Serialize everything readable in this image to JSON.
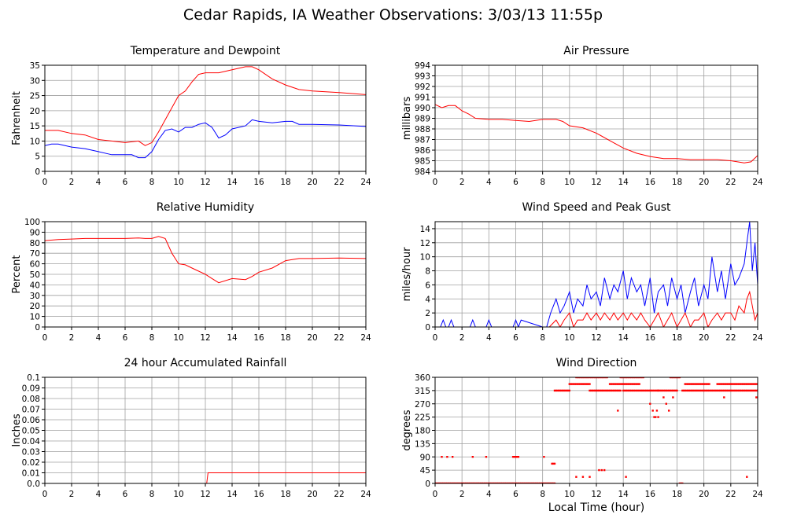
{
  "page": {
    "title": "Cedar Rapids, IA Weather Observations: 3/03/13 11:55p",
    "x_axis_label": "Local Time (hour)",
    "x_ticks": [
      "0",
      "2",
      "4",
      "6",
      "8",
      "10",
      "12",
      "14",
      "16",
      "18",
      "20",
      "22",
      "24"
    ]
  },
  "colors": {
    "red": "#ff0000",
    "blue": "#0000ff",
    "grid": "#a0a0a0",
    "frame": "#000000"
  },
  "chart_data": [
    {
      "id": "temp",
      "type": "line",
      "title": "Temperature and Dewpoint",
      "ylabel": "Fahrenheit",
      "xlim": [
        0,
        24
      ],
      "ylim": [
        0,
        35
      ],
      "yticks": [
        0,
        5,
        10,
        15,
        20,
        25,
        30,
        35
      ],
      "ytick_labels": [
        "0",
        "5",
        "10",
        "15",
        "20",
        "25",
        "30",
        "35"
      ],
      "grid": true,
      "series": [
        {
          "color": "#ff0000",
          "x": [
            0,
            1,
            2,
            3,
            4,
            5,
            6,
            7,
            7.5,
            8,
            8.5,
            9,
            9.5,
            10,
            10.5,
            11,
            11.5,
            12,
            13,
            14,
            15,
            15.5,
            16,
            17,
            18,
            19,
            20,
            22,
            24
          ],
          "y": [
            13.5,
            13.5,
            12.5,
            12,
            10.5,
            10,
            9.5,
            10,
            8.5,
            9.5,
            13,
            17,
            21,
            25,
            26.5,
            29.5,
            32,
            32.5,
            32.5,
            33.5,
            34.5,
            34.5,
            33.5,
            30.5,
            28.5,
            27,
            26.5,
            26,
            25.3
          ]
        },
        {
          "color": "#0000ff",
          "x": [
            0,
            0.5,
            1,
            2,
            3,
            4,
            5,
            6,
            6.5,
            7,
            7.5,
            8,
            8.5,
            9,
            9.5,
            10,
            10.5,
            11,
            11.5,
            12,
            12.5,
            13,
            13.5,
            14,
            15,
            15.5,
            16,
            17,
            18,
            18.5,
            19,
            20,
            22,
            24
          ],
          "y": [
            8.5,
            9,
            9,
            8,
            7.5,
            6.5,
            5.5,
            5.5,
            5.5,
            4.5,
            4.5,
            6.5,
            10.5,
            13.5,
            14,
            13,
            14.5,
            14.5,
            15.5,
            16,
            14.5,
            11,
            12,
            14,
            15,
            17,
            16.5,
            16,
            16.5,
            16.5,
            15.5,
            15.5,
            15.3,
            14.8
          ]
        }
      ]
    },
    {
      "id": "pres",
      "type": "line",
      "title": "Air Pressure",
      "ylabel": "millibars",
      "xlim": [
        0,
        24
      ],
      "ylim": [
        984,
        994
      ],
      "yticks": [
        984,
        985,
        986,
        987,
        988,
        989,
        990,
        991,
        992,
        993,
        994
      ],
      "ytick_labels": [
        "984",
        "985",
        "986",
        "987",
        "988",
        "989",
        "990",
        "991",
        "992",
        "993",
        "994"
      ],
      "grid": true,
      "series": [
        {
          "color": "#ff0000",
          "x": [
            0,
            0.5,
            1,
            1.5,
            2,
            2.5,
            3,
            4,
            5,
            6,
            7,
            8,
            9,
            9.5,
            10,
            11,
            12,
            13,
            14,
            15,
            16,
            17,
            18,
            19,
            20,
            21,
            22,
            23,
            23.5,
            24
          ],
          "y": [
            990.3,
            990.0,
            990.2,
            990.2,
            989.7,
            989.4,
            989.0,
            988.9,
            988.9,
            988.8,
            988.7,
            988.9,
            988.9,
            988.7,
            988.3,
            988.1,
            987.6,
            986.9,
            986.2,
            985.7,
            985.4,
            985.2,
            985.2,
            985.1,
            985.1,
            985.1,
            985.0,
            984.8,
            984.9,
            985.5
          ]
        }
      ]
    },
    {
      "id": "rh",
      "type": "line",
      "title": "Relative Humidity",
      "ylabel": "Percent",
      "xlim": [
        0,
        24
      ],
      "ylim": [
        0,
        100
      ],
      "yticks": [
        0,
        10,
        20,
        30,
        40,
        50,
        60,
        70,
        80,
        90,
        100
      ],
      "ytick_labels": [
        "0",
        "10",
        "20",
        "30",
        "40",
        "50",
        "60",
        "70",
        "80",
        "90",
        "100"
      ],
      "grid": true,
      "series": [
        {
          "color": "#ff0000",
          "x": [
            0,
            1,
            2,
            3,
            4,
            5,
            6,
            7,
            7.5,
            8,
            8.5,
            9,
            9.5,
            10,
            10.5,
            11,
            11.5,
            12,
            12.5,
            13,
            14,
            15,
            15.5,
            16,
            17,
            18,
            19,
            20,
            22,
            24
          ],
          "y": [
            82,
            83,
            83.5,
            84,
            84,
            84,
            84,
            84.5,
            84,
            84,
            86,
            84,
            70,
            60,
            59,
            56,
            53,
            50,
            46,
            42,
            46,
            45,
            48,
            52,
            56,
            63,
            65,
            65,
            65.5,
            65
          ]
        }
      ]
    },
    {
      "id": "wind",
      "type": "line",
      "title": "Wind Speed and Peak Gust",
      "ylabel": "miles/hour",
      "xlim": [
        0,
        24
      ],
      "ylim": [
        0,
        15
      ],
      "yticks": [
        0,
        2,
        4,
        6,
        8,
        10,
        12,
        14
      ],
      "ytick_labels": [
        "0",
        "2",
        "4",
        "6",
        "8",
        "10",
        "12",
        "14"
      ],
      "grid": true,
      "series": [
        {
          "color": "#0000ff",
          "x": [
            0,
            0.4,
            0.6,
            0.8,
            1.0,
            1.2,
            1.4,
            2.6,
            2.8,
            3.0,
            3.8,
            4.0,
            4.2,
            5.8,
            6.0,
            6.2,
            6.4,
            8.0,
            8.3,
            8.6,
            9.0,
            9.3,
            9.6,
            10.0,
            10.3,
            10.6,
            11.0,
            11.3,
            11.6,
            12.0,
            12.3,
            12.6,
            13.0,
            13.3,
            13.6,
            14.0,
            14.3,
            14.6,
            15.0,
            15.3,
            15.6,
            16.0,
            16.3,
            16.6,
            17.0,
            17.3,
            17.6,
            18.0,
            18.3,
            18.6,
            19.0,
            19.3,
            19.6,
            20.0,
            20.3,
            20.6,
            21.0,
            21.3,
            21.6,
            22.0,
            22.3,
            22.6,
            23.0,
            23.2,
            23.4,
            23.6,
            23.8,
            24.0
          ],
          "y": [
            0,
            0,
            1,
            0,
            0,
            1,
            0,
            0,
            1,
            0,
            0,
            1,
            0,
            0,
            1,
            0,
            1,
            0,
            0,
            2,
            4,
            2,
            3,
            5,
            2,
            4,
            3,
            6,
            4,
            5,
            3,
            7,
            4,
            6,
            5,
            8,
            4,
            7,
            5,
            6,
            3,
            7,
            2,
            5,
            6,
            3,
            7,
            4,
            6,
            2,
            5,
            7,
            3,
            6,
            4,
            10,
            5,
            8,
            4,
            9,
            6,
            7,
            9,
            12,
            15,
            8,
            12,
            6
          ]
        },
        {
          "color": "#ff0000",
          "x": [
            0,
            8.5,
            9.0,
            9.3,
            9.6,
            10.0,
            10.3,
            10.6,
            11.0,
            11.3,
            11.6,
            12.0,
            12.3,
            12.6,
            13.0,
            13.3,
            13.6,
            14.0,
            14.3,
            14.6,
            15.0,
            15.3,
            15.6,
            16.0,
            16.3,
            16.6,
            17.0,
            17.3,
            17.6,
            18.0,
            18.3,
            18.6,
            19.0,
            19.3,
            19.6,
            20.0,
            20.3,
            20.6,
            21.0,
            21.3,
            21.6,
            22.0,
            22.3,
            22.6,
            23.0,
            23.2,
            23.4,
            23.6,
            23.8,
            24.0
          ],
          "y": [
            0,
            0,
            1,
            0,
            1,
            2,
            0,
            1,
            1,
            2,
            1,
            2,
            1,
            2,
            1,
            2,
            1,
            2,
            1,
            2,
            1,
            2,
            1,
            0,
            1,
            2,
            0,
            1,
            2,
            0,
            1,
            2,
            0,
            1,
            1,
            2,
            0,
            1,
            2,
            1,
            2,
            2,
            1,
            3,
            2,
            4,
            5,
            3,
            1,
            2
          ]
        }
      ]
    },
    {
      "id": "rain",
      "type": "line",
      "title": "24 hour Accumulated Rainfall",
      "ylabel": "Inches",
      "xlim": [
        0,
        24
      ],
      "ylim": [
        0,
        0.1
      ],
      "yticks": [
        0,
        0.01,
        0.02,
        0.03,
        0.04,
        0.05,
        0.06,
        0.07,
        0.08,
        0.09,
        0.1
      ],
      "ytick_labels": [
        "0.0",
        "0.01",
        "0.02",
        "0.03",
        "0.04",
        "0.05",
        "0.06",
        "0.07",
        "0.08",
        "0.09",
        "0.1"
      ],
      "grid": true,
      "series": [
        {
          "color": "#ff0000",
          "x": [
            0,
            12.1,
            12.2,
            24
          ],
          "y": [
            0,
            0,
            0.01,
            0.01
          ]
        }
      ]
    },
    {
      "id": "dir",
      "type": "scatter",
      "title": "Wind Direction",
      "ylabel": "degrees",
      "xlim": [
        0,
        24
      ],
      "ylim": [
        0,
        360
      ],
      "yticks": [
        0,
        45,
        90,
        135,
        180,
        225,
        270,
        315,
        360
      ],
      "ytick_labels": [
        "0",
        "45",
        "90",
        "135",
        "180",
        "225",
        "270",
        "315",
        "360"
      ],
      "grid": true,
      "series": [
        {
          "color": "#ff0000",
          "points": [
            {
              "x0": 0.0,
              "x1": 8.9,
              "step": 0.1,
              "y": 0
            },
            {
              "x0": 18.2,
              "x1": 18.4,
              "step": 0.1,
              "y": 0
            },
            {
              "x0": 8.9,
              "x1": 10.0,
              "step": 0.1,
              "y": 315
            },
            {
              "x0": 10.0,
              "x1": 11.5,
              "step": 0.1,
              "y": 337
            },
            {
              "x0": 10.5,
              "x1": 12.8,
              "step": 0.1,
              "y": 360
            },
            {
              "x0": 11.5,
              "x1": 13.8,
              "step": 0.1,
              "y": 315
            },
            {
              "x0": 13.0,
              "x1": 15.2,
              "step": 0.1,
              "y": 337
            },
            {
              "x0": 13.8,
              "x1": 15.5,
              "step": 0.1,
              "y": 360
            },
            {
              "x0": 14.0,
              "x1": 16.6,
              "step": 0.1,
              "y": 315
            },
            {
              "x0": 16.6,
              "x1": 18.0,
              "step": 0.1,
              "y": 315
            },
            {
              "x0": 17.5,
              "x1": 18.2,
              "step": 0.1,
              "y": 360
            },
            {
              "x0": 18.4,
              "x1": 24.0,
              "step": 0.1,
              "y": 315
            },
            {
              "x0": 18.6,
              "x1": 20.4,
              "step": 0.1,
              "y": 337
            },
            {
              "x0": 21.0,
              "x1": 24.0,
              "step": 0.1,
              "y": 337
            }
          ],
          "extra_x": [
            0.5,
            0.9,
            1.3,
            2.8,
            3.8,
            5.8,
            5.9,
            6.0,
            6.1,
            6.2,
            8.1,
            8.7,
            8.8,
            8.9,
            10.5,
            11.0,
            11.5,
            12.2,
            12.4,
            12.6,
            14.2,
            13.6,
            16.0,
            16.2,
            16.3,
            16.4,
            16.5,
            16.6,
            17.0,
            17.2,
            17.4,
            17.7,
            21.5,
            23.2,
            23.9
          ],
          "extra_y": [
            90,
            90,
            90,
            90,
            90,
            90,
            90,
            90,
            90,
            90,
            90,
            67,
            67,
            67,
            22,
            22,
            22,
            45,
            45,
            45,
            22,
            247,
            270,
            247,
            225,
            225,
            247,
            225,
            292,
            270,
            247,
            292,
            292,
            22,
            292
          ]
        }
      ]
    }
  ]
}
